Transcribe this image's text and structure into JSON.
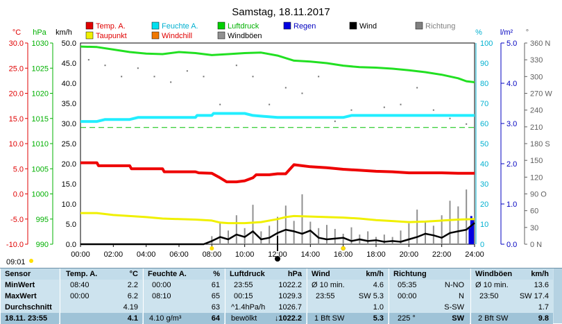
{
  "chart_data": {
    "type": "line",
    "title": "Samstag, 18.11.2017",
    "x_ticks": [
      "00:00",
      "02:00",
      "04:00",
      "06:00",
      "08:00",
      "10:00",
      "12:00",
      "14:00",
      "16:00",
      "18:00",
      "20:00",
      "22:00",
      "24:00"
    ],
    "x_range": [
      0,
      24
    ],
    "axes": {
      "temp": {
        "unit": "°C",
        "ticks": [
          "30.0",
          "25.0",
          "20.0",
          "15.0",
          "10.0",
          "5.0",
          "0.0",
          "-5.0",
          "-10.0"
        ],
        "range": [
          -10,
          30
        ],
        "color": "#e00000"
      },
      "pressure": {
        "unit": "hPa",
        "ticks": [
          "1030",
          "1025",
          "1020",
          "1015",
          "1010",
          "1005",
          "1000",
          "995",
          "990"
        ],
        "range": [
          990,
          1030
        ],
        "color": "#00b000"
      },
      "wind": {
        "unit": "km/h",
        "ticks": [
          "50.0",
          "45.0",
          "40.0",
          "35.0",
          "30.0",
          "25.0",
          "20.0",
          "15.0",
          "10.0",
          "5.0",
          "0.0"
        ],
        "range": [
          0,
          50
        ],
        "color": "#000000"
      },
      "humidity": {
        "unit": "%",
        "ticks": [
          "100",
          "90",
          "80",
          "70",
          "60",
          "50",
          "40",
          "30",
          "20",
          "10",
          "0"
        ],
        "range": [
          0,
          100
        ],
        "color": "#00b0d0"
      },
      "rain": {
        "unit": "l/m²",
        "ticks": [
          "5.0",
          "4.0",
          "3.0",
          "2.0",
          "1.0",
          "0.0"
        ],
        "range": [
          0,
          5
        ],
        "color": "#0000c0"
      },
      "direction": {
        "unit": "°",
        "ticks": [
          "360 N",
          "330",
          "300",
          "270 W",
          "240",
          "210",
          "180 S",
          "150",
          "120",
          "90 O",
          "60",
          "30",
          "0 N"
        ],
        "range": [
          0,
          360
        ],
        "color": "#606060"
      }
    },
    "legend": [
      {
        "name": "Temp. A.",
        "color": "#e00000",
        "text_color": "#e00000"
      },
      {
        "name": "Feuchte A.",
        "color": "#00e0f0",
        "text_color": "#00b0d0"
      },
      {
        "name": "Luftdruck",
        "color": "#00d000",
        "text_color": "#00b000"
      },
      {
        "name": "Regen",
        "color": "#0000e0",
        "text_color": "#0000c0"
      },
      {
        "name": "Wind",
        "color": "#000000",
        "text_color": "#000000"
      },
      {
        "name": "Richtung",
        "color": "#808080",
        "text_color": "#808080"
      },
      {
        "name": "Taupunkt",
        "color": "#f0f000",
        "text_color": "#e00000"
      },
      {
        "name": "Windchill",
        "color": "#f07800",
        "text_color": "#e00000"
      },
      {
        "name": "Windböen",
        "color": "#909090",
        "text_color": "#000000"
      }
    ],
    "series": [
      {
        "name": "Temp. A.",
        "axis": "temp",
        "x": [
          0,
          1,
          1.1,
          3,
          3.1,
          5,
          5.1,
          7,
          7.2,
          8,
          8.5,
          8.9,
          9.5,
          10,
          10.5,
          10.7,
          11.5,
          12,
          12.5,
          13,
          13.5,
          14,
          15,
          16,
          17,
          18,
          19,
          20,
          21,
          22,
          23,
          24
        ],
        "y": [
          6.2,
          6.2,
          5.6,
          5.6,
          5.0,
          5.0,
          4.4,
          4.4,
          4.2,
          4.1,
          3.2,
          2.4,
          2.4,
          2.6,
          3.2,
          3.8,
          3.8,
          4.0,
          4.0,
          5.8,
          5.6,
          5.4,
          5.2,
          4.9,
          4.7,
          4.5,
          4.4,
          4.2,
          4.2,
          4.2,
          4.1,
          4.1
        ]
      },
      {
        "name": "Taupunkt",
        "axis": "temp",
        "x": [
          0,
          1,
          2,
          3,
          4,
          5,
          6,
          7,
          8,
          8.5,
          9,
          10,
          11,
          12,
          12.5,
          13,
          14,
          15,
          16,
          17,
          18,
          19,
          20,
          21,
          22,
          23,
          24
        ],
        "y": [
          -3.8,
          -3.8,
          -4.2,
          -4.4,
          -4.6,
          -4.9,
          -5.0,
          -5.1,
          -5.3,
          -5.7,
          -5.8,
          -5.8,
          -5.6,
          -5.0,
          -4.6,
          -4.4,
          -4.5,
          -4.6,
          -4.7,
          -4.9,
          -5.2,
          -5.4,
          -5.6,
          -5.5,
          -5.3,
          -5.1,
          -5.0
        ]
      },
      {
        "name": "Luftdruck",
        "axis": "pressure",
        "x": [
          0,
          1,
          2,
          3,
          4,
          5,
          6,
          7,
          8,
          9,
          10,
          11,
          12,
          13,
          14,
          15,
          16,
          17,
          18,
          19,
          20,
          21,
          22,
          23,
          23.5,
          24
        ],
        "y": [
          1029.3,
          1029.2,
          1028.7,
          1028.2,
          1027.9,
          1027.8,
          1028.2,
          1028.0,
          1027.6,
          1027.8,
          1028.0,
          1028.1,
          1027.5,
          1026.5,
          1026.3,
          1026.0,
          1025.5,
          1025.2,
          1025.1,
          1024.9,
          1024.6,
          1024.2,
          1023.7,
          1023.0,
          1022.4,
          1022.2
        ]
      },
      {
        "name": "Feuchte A.",
        "axis": "humidity",
        "x": [
          0,
          1,
          1.5,
          3,
          3.5,
          7,
          7.1,
          8,
          8.1,
          10,
          10.5,
          12,
          14,
          16,
          16.5,
          18,
          20,
          22,
          24
        ],
        "y": [
          61,
          61,
          62,
          62,
          63,
          63,
          64,
          64,
          65,
          65,
          64,
          63,
          63,
          63,
          64,
          64,
          64,
          64,
          64
        ]
      },
      {
        "name": "Wind",
        "axis": "wind",
        "x": [
          0,
          7.5,
          8,
          8.5,
          9,
          9.5,
          10,
          10.5,
          11,
          11.5,
          12,
          12.5,
          13,
          13.5,
          14,
          14.5,
          15,
          15.5,
          16,
          16.5,
          17,
          17.5,
          18,
          18.5,
          19,
          19.5,
          20,
          20.5,
          21,
          21.5,
          22,
          22.5,
          23,
          23.5,
          24
        ],
        "y": [
          0,
          0,
          0.8,
          1.8,
          1.2,
          2.4,
          1.8,
          3.2,
          1.2,
          1.6,
          2.8,
          3.6,
          3.2,
          2.6,
          3.4,
          1.6,
          1.2,
          1.4,
          1.6,
          0.8,
          1.2,
          0.8,
          1.0,
          0.6,
          0.8,
          0.6,
          1.2,
          1.8,
          2.6,
          2.2,
          1.6,
          2.8,
          3.2,
          3.6,
          5.3
        ]
      },
      {
        "name": "Windböen",
        "axis": "wind",
        "x": [
          0,
          7,
          7.5,
          8,
          8.5,
          9,
          9.5,
          10,
          10.5,
          11,
          11.5,
          12,
          12.5,
          13,
          13.5,
          14,
          14.5,
          15,
          15.5,
          16,
          16.5,
          17,
          17.5,
          18,
          18.5,
          19,
          19.5,
          20,
          20.5,
          21,
          21.5,
          22,
          22.5,
          23,
          23.5,
          24
        ],
        "y": [
          0,
          0,
          0,
          2.0,
          5.6,
          3.4,
          7.2,
          4.0,
          9.8,
          3.2,
          4.6,
          6.8,
          9.6,
          5.8,
          12.4,
          5.6,
          4.0,
          4.8,
          3.8,
          2.6,
          4.2,
          2.4,
          3.2,
          1.8,
          2.4,
          1.8,
          3.4,
          5.2,
          8.6,
          5.8,
          4.6,
          7.2,
          10.8,
          9.4,
          13.6,
          17.4
        ]
      },
      {
        "name": "Regen",
        "axis": "rain",
        "x": [
          0,
          23.6,
          23.7,
          23.8,
          23.9,
          24
        ],
        "y": [
          0,
          0,
          0.4,
          0.7,
          0.6,
          0
        ]
      },
      {
        "name": "Richtung",
        "axis": "direction",
        "type": "scatter",
        "x": [
          0.5,
          1.5,
          2.5,
          3.5,
          4.5,
          5.5,
          6.5,
          7.5,
          8.5,
          9.5,
          10.5,
          11.5,
          12.5,
          13.5,
          14.5,
          15.5,
          16.5,
          17.5,
          18.5,
          19.5,
          20.5,
          21.5,
          22.5,
          23.5
        ],
        "y": [
          330,
          320,
          300,
          315,
          300,
          290,
          310,
          300,
          250,
          320,
          300,
          250,
          280,
          270,
          300,
          220,
          240,
          230,
          245,
          250,
          280,
          240,
          225,
          215
        ]
      }
    ],
    "markers": {
      "sunrise": "08:00",
      "sunset": "16:00",
      "now": "12:00"
    }
  },
  "now_time": "09:01",
  "table": {
    "sensor": {
      "header": "Sensor",
      "rows": [
        "MinWert",
        "MaxWert",
        "Durchschnitt",
        "18.11. 23:55"
      ]
    },
    "temp": {
      "header": "Temp. A.",
      "unit": "°C",
      "rows": [
        [
          "08:40",
          "2.2"
        ],
        [
          "00:00",
          "6.2"
        ],
        [
          "",
          "4.19"
        ],
        [
          "",
          "4.1"
        ]
      ]
    },
    "humidity": {
      "header": "Feuchte A.",
      "unit": "%",
      "rows": [
        [
          "00:00",
          "61"
        ],
        [
          "08:10",
          "65"
        ],
        [
          "",
          "63"
        ],
        [
          "4.10 g/m³",
          "64"
        ]
      ]
    },
    "pressure": {
      "header": "Luftdruck",
      "unit": "hPa",
      "rows": [
        [
          "23:55",
          "1022.2"
        ],
        [
          "00:15",
          "1029.3"
        ],
        [
          "^1.4hPa/h",
          "1026.7"
        ],
        [
          "bewölkt",
          "↓1022.2"
        ]
      ]
    },
    "wind": {
      "header": "Wind",
      "unit": "km/h",
      "rows": [
        [
          "Ø 10 min.",
          "4.6"
        ],
        [
          "23:55",
          "SW 5.3"
        ],
        [
          "",
          "1.0"
        ],
        [
          "1 Bft SW",
          "5.3"
        ]
      ]
    },
    "direction": {
      "header": "Richtung",
      "unit": "",
      "rows": [
        [
          "05:35",
          "N-NO"
        ],
        [
          "00:00",
          "N"
        ],
        [
          "",
          "S-SW"
        ],
        [
          "225 °",
          "SW"
        ]
      ]
    },
    "gusts": {
      "header": "Windböen",
      "unit": "km/h",
      "rows": [
        [
          "Ø 10 min.",
          "13.6"
        ],
        [
          "23:50",
          "SW 17.4"
        ],
        [
          "",
          "1.7"
        ],
        [
          "2 Bft SW",
          "9.8"
        ]
      ]
    }
  }
}
